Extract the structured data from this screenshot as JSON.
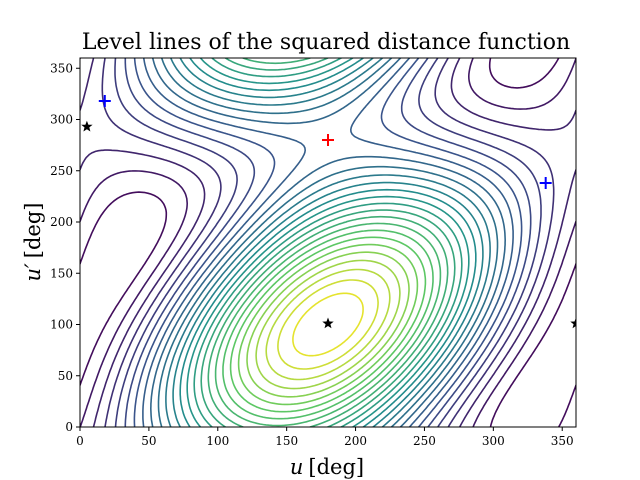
{
  "chart_data": {
    "type": "contour",
    "title": "Level lines of the squared distance function",
    "xlabel_var": "u",
    "xlabel_unit": "[deg]",
    "ylabel_var": "u′",
    "ylabel_unit": "[deg]",
    "xlim": [
      0,
      360
    ],
    "ylim": [
      0,
      360
    ],
    "xticks": [
      0,
      50,
      100,
      150,
      200,
      250,
      300,
      350
    ],
    "yticks": [
      0,
      50,
      100,
      150,
      200,
      250,
      300,
      350
    ],
    "colormap": [
      "#440154",
      "#3b528b",
      "#21918c",
      "#5ec962",
      "#fde725"
    ],
    "contour_levels": 26,
    "maxima": [
      {
        "u": 180,
        "u2": 280,
        "marker": "+",
        "color": "#ff0000"
      }
    ],
    "minima": [
      {
        "u": 18,
        "u2": 318,
        "marker": "+",
        "color": "#0000ff"
      },
      {
        "u": 338,
        "u2": 238,
        "marker": "+",
        "color": "#0000ff"
      }
    ],
    "saddles": [
      {
        "u": 5,
        "u2": 293,
        "marker": "star",
        "color": "#000000"
      },
      {
        "u": 180,
        "u2": 101,
        "marker": "star",
        "color": "#000000"
      },
      {
        "u": 360,
        "u2": 101,
        "marker": "star",
        "color": "#000000"
      }
    ],
    "grid": false
  }
}
